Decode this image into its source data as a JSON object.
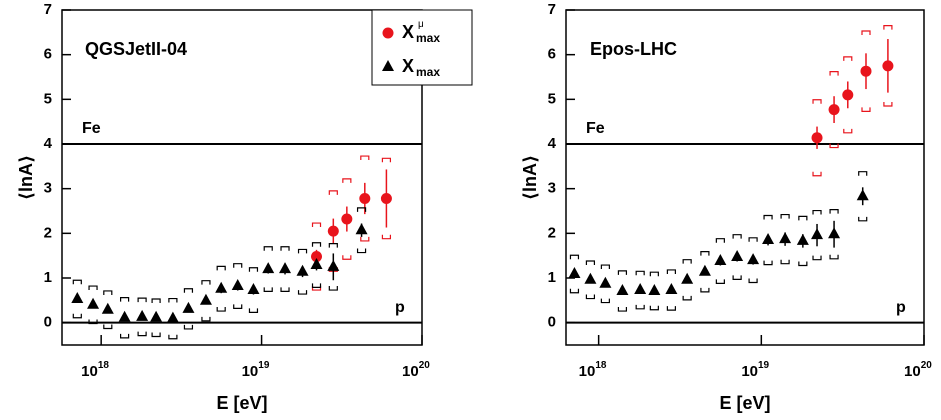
{
  "chart_data": [
    {
      "type": "scatter",
      "panel_label": "QGSJetII-04",
      "x_label": "E [eV]",
      "y_label": "⟨lnA⟩",
      "log_x": true,
      "xlim": [
        5.7e+17,
        1e+20
      ],
      "ylim": [
        -0.5,
        7
      ],
      "xticks": [
        {
          "value": 1e+18,
          "label": "10",
          "exponent": "18"
        },
        {
          "value": 1e+19,
          "label": "10",
          "exponent": "19"
        },
        {
          "value": 1e+20,
          "label": "10",
          "exponent": "20"
        }
      ],
      "yticks": [
        0,
        1,
        2,
        3,
        4,
        5,
        6,
        7
      ],
      "ref_lines": [
        {
          "label": "Fe",
          "value": 4
        },
        {
          "label": "p",
          "value": 0
        }
      ],
      "series": [
        {
          "name": "X",
          "sub": "max",
          "sup": "μ",
          "marker": "circle",
          "color": "#e8141c",
          "x": [
            2.2e+19,
            2.8e+19,
            3.4e+19,
            4.4e+19,
            6e+19
          ],
          "values": [
            1.48,
            2.05,
            2.32,
            2.78,
            2.78
          ],
          "errors": [
            0.15,
            0.28,
            0.28,
            0.35,
            0.65
          ],
          "sys": [
            0.75,
            0.9,
            0.9,
            0.95,
            0.9
          ]
        },
        {
          "name": "X",
          "sub": "max",
          "marker": "triangle",
          "color": "#000000",
          "x": [
            7.1e+17,
            8.9e+17,
            1.1e+18,
            1.4e+18,
            1.8e+18,
            2.2e+18,
            2.8e+18,
            3.5e+18,
            4.5e+18,
            5.6e+18,
            7.1e+18,
            8.9e+18,
            1.1e+19,
            1.4e+19,
            1.8e+19,
            2.2e+19,
            2.8e+19,
            4.2e+19
          ],
          "values": [
            0.53,
            0.4,
            0.29,
            0.11,
            0.13,
            0.11,
            0.09,
            0.31,
            0.49,
            0.76,
            0.82,
            0.73,
            1.2,
            1.2,
            1.14,
            1.29,
            1.25,
            2.07
          ],
          "errors": [
            0.08,
            0.08,
            0.08,
            0.08,
            0.08,
            0.08,
            0.08,
            0.08,
            0.08,
            0.1,
            0.1,
            0.1,
            0.1,
            0.12,
            0.12,
            0.12,
            0.3,
            0.15
          ],
          "sys": [
            0.42,
            0.42,
            0.42,
            0.45,
            0.42,
            0.42,
            0.45,
            0.45,
            0.45,
            0.5,
            0.5,
            0.5,
            0.5,
            0.5,
            0.5,
            0.5,
            0.52,
            0.5
          ]
        }
      ]
    },
    {
      "type": "scatter",
      "panel_label": "Epos-LHC",
      "x_label": "E [eV]",
      "y_label": "⟨lnA⟩",
      "log_x": true,
      "xlim": [
        6.3e+17,
        1e+20
      ],
      "ylim": [
        -0.5,
        7
      ],
      "xticks": [
        {
          "value": 1e+18,
          "label": "10",
          "exponent": "18"
        },
        {
          "value": 1e+19,
          "label": "10",
          "exponent": "19"
        },
        {
          "value": 1e+20,
          "label": "10",
          "exponent": "20"
        }
      ],
      "yticks": [
        0,
        1,
        2,
        3,
        4,
        5,
        6,
        7
      ],
      "ref_lines": [
        {
          "label": "Fe",
          "value": 4
        },
        {
          "label": "p",
          "value": 0
        }
      ],
      "series": [
        {
          "marker": "circle",
          "color": "#e8141c",
          "x": [
            2.2e+19,
            2.8e+19,
            3.4e+19,
            4.4e+19,
            6e+19
          ],
          "values": [
            4.14,
            4.77,
            5.1,
            5.63,
            5.75
          ],
          "errors": [
            0.25,
            0.3,
            0.3,
            0.4,
            0.6
          ],
          "sys": [
            0.85,
            0.85,
            0.85,
            0.9,
            0.9
          ]
        },
        {
          "marker": "triangle",
          "color": "#000000",
          "x": [
            7.1e+17,
            8.9e+17,
            1.1e+18,
            1.4e+18,
            1.8e+18,
            2.2e+18,
            2.8e+18,
            3.5e+18,
            4.5e+18,
            5.6e+18,
            7.1e+18,
            8.9e+18,
            1.1e+19,
            1.4e+19,
            1.8e+19,
            2.2e+19,
            2.8e+19,
            4.2e+19
          ],
          "values": [
            1.09,
            0.96,
            0.87,
            0.71,
            0.73,
            0.71,
            0.73,
            0.96,
            1.14,
            1.38,
            1.47,
            1.4,
            1.85,
            1.87,
            1.83,
            1.96,
            1.98,
            2.83
          ],
          "errors": [
            0.08,
            0.08,
            0.08,
            0.08,
            0.08,
            0.08,
            0.08,
            0.08,
            0.08,
            0.1,
            0.1,
            0.1,
            0.12,
            0.15,
            0.15,
            0.25,
            0.3,
            0.2
          ],
          "sys": [
            0.42,
            0.42,
            0.42,
            0.45,
            0.42,
            0.42,
            0.45,
            0.45,
            0.45,
            0.5,
            0.5,
            0.5,
            0.55,
            0.55,
            0.55,
            0.55,
            0.55,
            0.55
          ]
        }
      ]
    }
  ]
}
